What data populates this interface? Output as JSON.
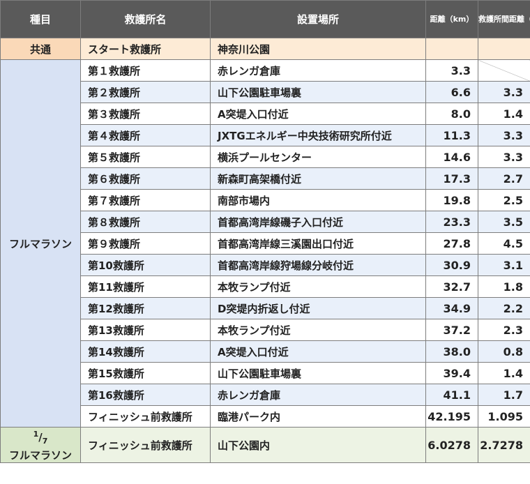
{
  "headers": {
    "category": "種目",
    "station": "救護所名",
    "location": "設置場所",
    "distance": "距離（km）",
    "interval": "救護所間距離（km）"
  },
  "common": {
    "category": "共通",
    "station": "スタート救護所",
    "location": "神奈川公園",
    "distance": "",
    "interval": ""
  },
  "full_marathon": {
    "category": "フルマラソン",
    "rows": [
      {
        "station": "第１救護所",
        "location": "赤レンガ倉庫",
        "distance": "3.3",
        "interval": ""
      },
      {
        "station": "第２救護所",
        "location": "山下公園駐車場裏",
        "distance": "6.6",
        "interval": "3.3"
      },
      {
        "station": "第３救護所",
        "location": "A突堤入口付近",
        "distance": "8.0",
        "interval": "1.4"
      },
      {
        "station": "第４救護所",
        "location": "JXTGエネルギー中央技術研究所付近",
        "distance": "11.3",
        "interval": "3.3"
      },
      {
        "station": "第５救護所",
        "location": "横浜プールセンター",
        "distance": "14.6",
        "interval": "3.3"
      },
      {
        "station": "第６救護所",
        "location": "新森町高架橋付近",
        "distance": "17.3",
        "interval": "2.7"
      },
      {
        "station": "第７救護所",
        "location": "南部市場内",
        "distance": "19.8",
        "interval": "2.5"
      },
      {
        "station": "第８救護所",
        "location": "首都高湾岸線磯子入口付近",
        "distance": "23.3",
        "interval": "3.5"
      },
      {
        "station": "第９救護所",
        "location": "首都高湾岸線三溪園出口付近",
        "distance": "27.8",
        "interval": "4.5"
      },
      {
        "station": "第10救護所",
        "location": "首都高湾岸線狩場線分岐付近",
        "distance": "30.9",
        "interval": "3.1"
      },
      {
        "station": "第11救護所",
        "location": "本牧ランプ付近",
        "distance": "32.7",
        "interval": "1.8"
      },
      {
        "station": "第12救護所",
        "location": "D突堤内折返し付近",
        "distance": "34.9",
        "interval": "2.2"
      },
      {
        "station": "第13救護所",
        "location": "本牧ランプ付近",
        "distance": "37.2",
        "interval": "2.3"
      },
      {
        "station": "第14救護所",
        "location": "A突堤入口付近",
        "distance": "38.0",
        "interval": "0.8"
      },
      {
        "station": "第15救護所",
        "location": "山下公園駐車場裏",
        "distance": "39.4",
        "interval": "1.4"
      },
      {
        "station": "第16救護所",
        "location": "赤レンガ倉庫",
        "distance": "41.1",
        "interval": "1.7"
      },
      {
        "station": "フィニッシュ前救護所",
        "location": "臨港パーク内",
        "distance": "42.195",
        "interval": "1.095"
      }
    ]
  },
  "seventh_marathon": {
    "category_sup": "1",
    "category_sub": "7",
    "category_main": "フルマラソン",
    "station": "フィニッシュ前救護所",
    "location": "山下公園内",
    "distance": "6.0278",
    "interval": "2.7278"
  }
}
